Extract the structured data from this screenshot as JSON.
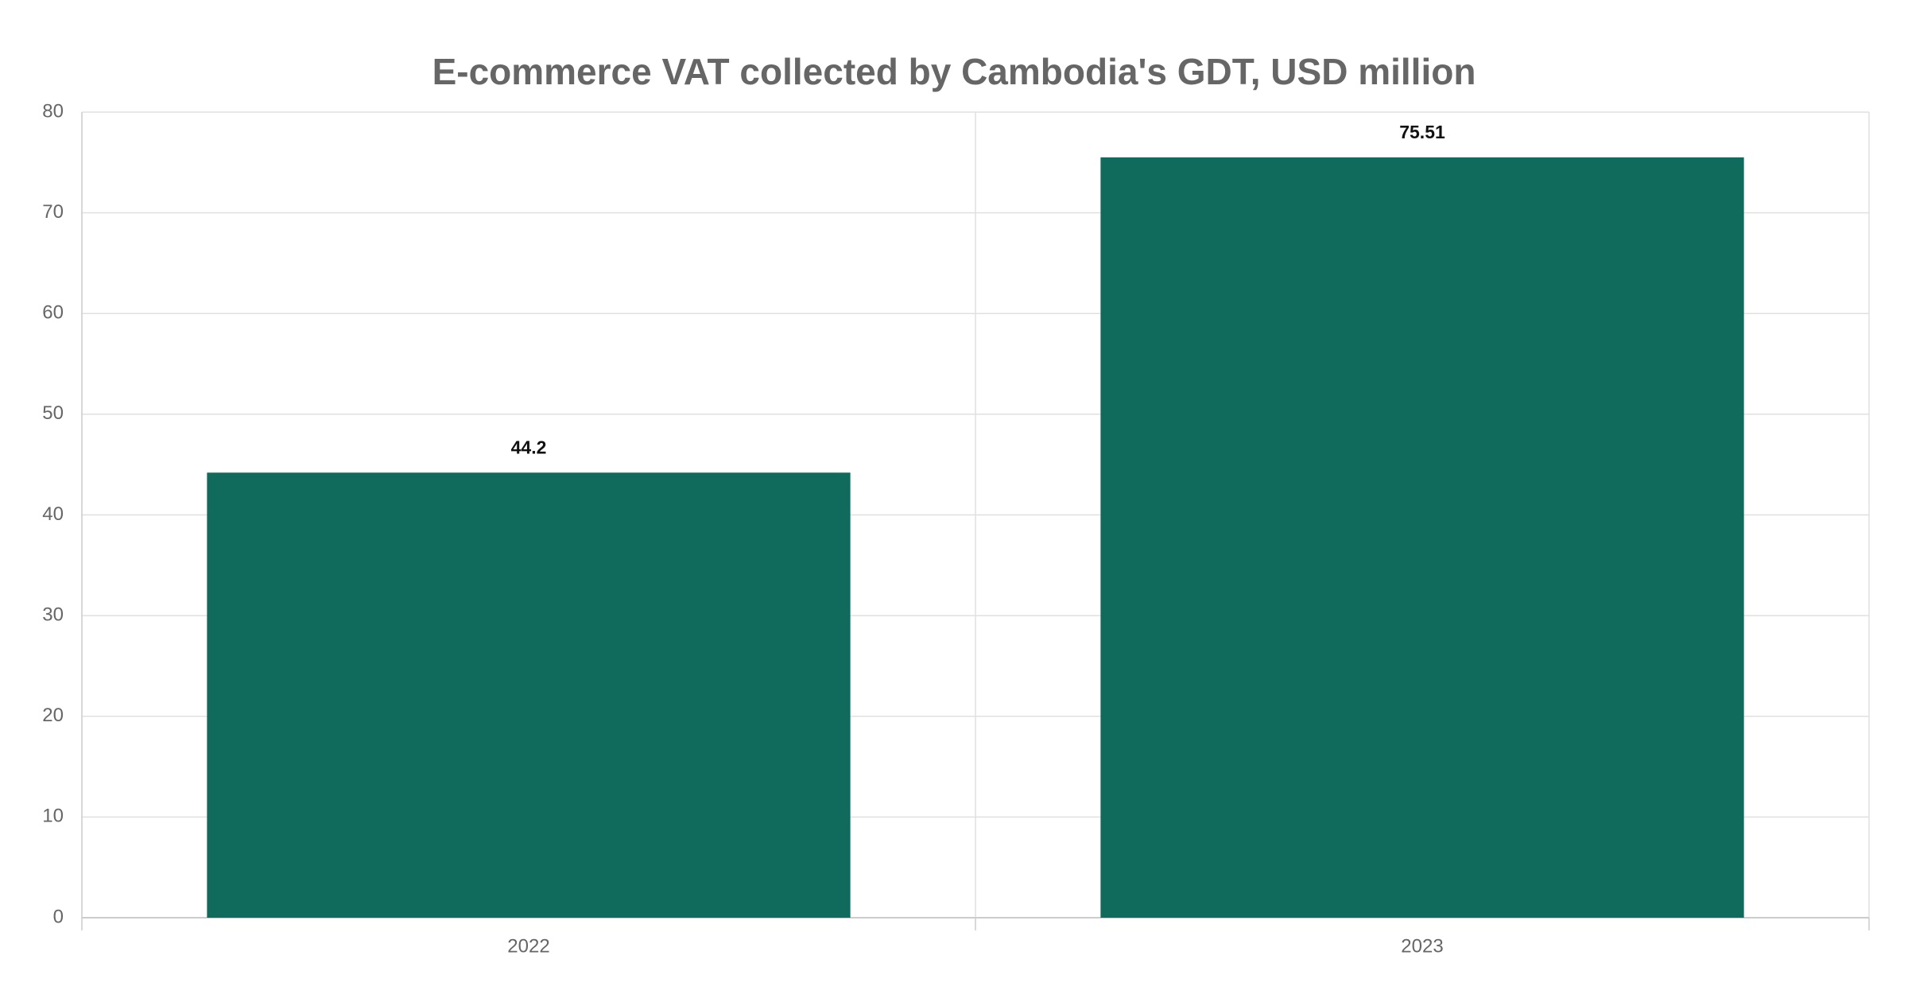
{
  "chart_data": {
    "type": "bar",
    "title": "E-commerce VAT collected by Cambodia's GDT, USD million",
    "categories": [
      "2022",
      "2023"
    ],
    "values": [
      44.2,
      75.51
    ],
    "color": "#116b5c",
    "ylim": [
      0,
      80
    ],
    "yticks": [
      0,
      10,
      20,
      30,
      40,
      50,
      60,
      70,
      80
    ],
    "grid": true
  }
}
